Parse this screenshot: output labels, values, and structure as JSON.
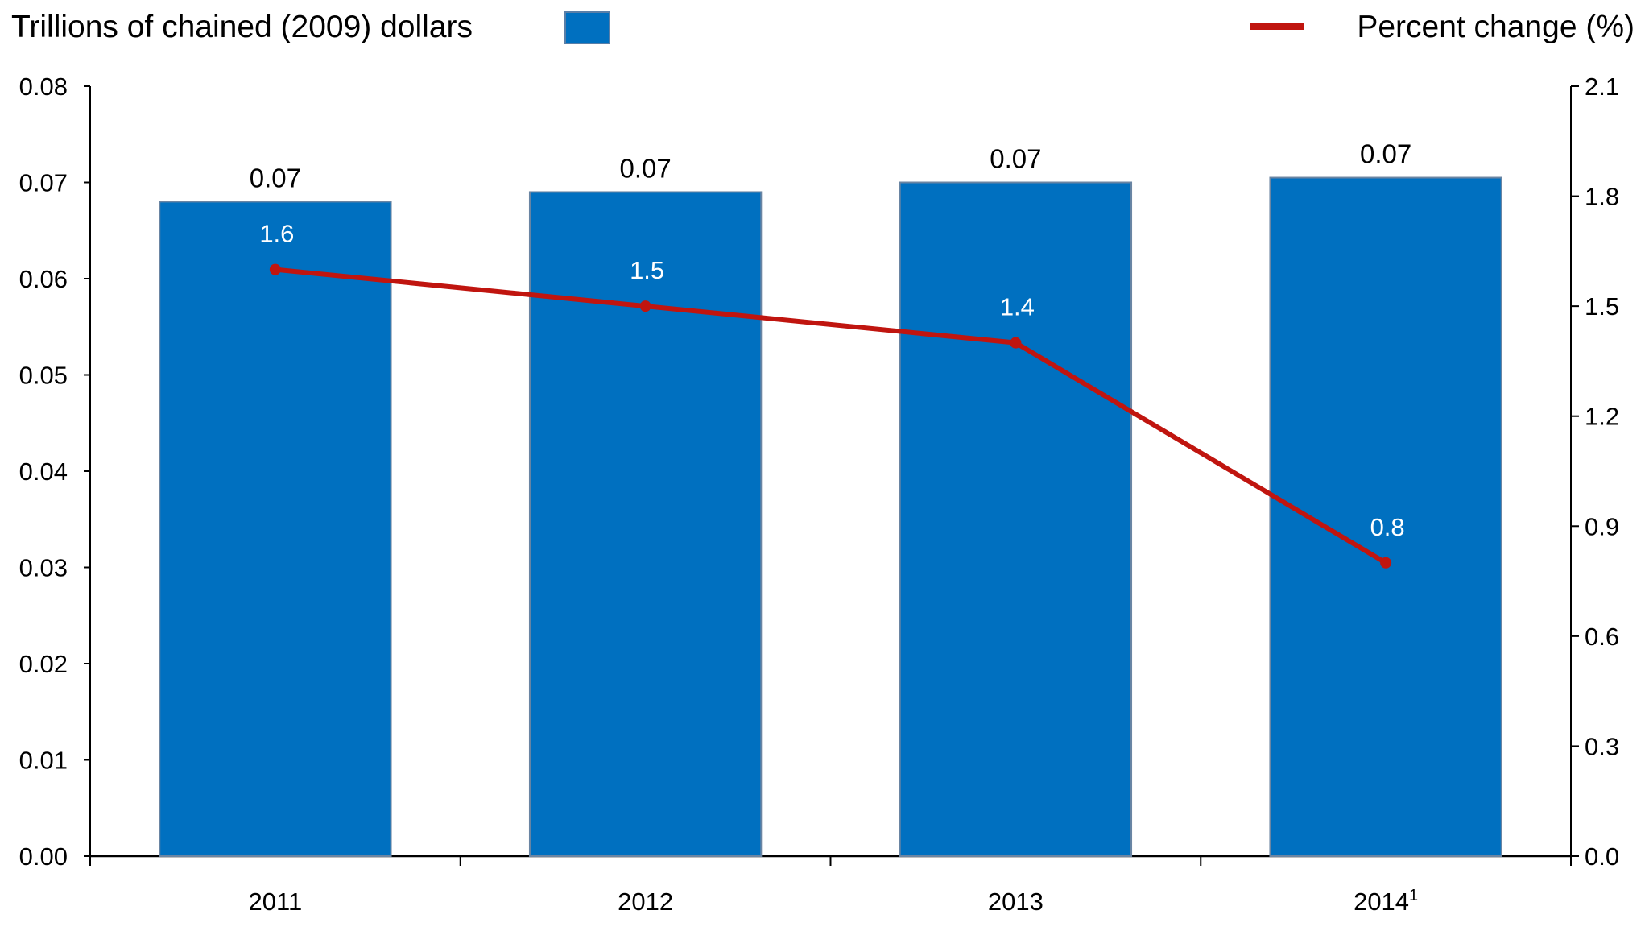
{
  "chart_data": {
    "type": "bar+line",
    "categories": [
      "2011",
      "2012",
      "2013",
      "2014"
    ],
    "category_superscripts": [
      "",
      "",
      "",
      "1"
    ],
    "series": [
      {
        "name": "Trillions of chained (2009) dollars",
        "type": "bar",
        "axis": "left",
        "values": [
          0.068,
          0.069,
          0.07,
          0.0705
        ],
        "labels": [
          "0.07",
          "0.07",
          "0.07",
          "0.07"
        ],
        "color": "#0070C0"
      },
      {
        "name": "Percent change (%)",
        "type": "line",
        "axis": "right",
        "values": [
          1.6,
          1.5,
          1.4,
          0.8
        ],
        "labels": [
          "1.6",
          "1.5",
          "1.4",
          "0.8"
        ],
        "color": "#C0150F"
      }
    ],
    "left_axis": {
      "ylim": [
        0,
        0.08
      ],
      "ticks": [
        "0.00",
        "0.01",
        "0.02",
        "0.03",
        "0.04",
        "0.05",
        "0.06",
        "0.07",
        "0.08"
      ]
    },
    "right_axis": {
      "ylim": [
        0,
        2.1
      ],
      "ticks": [
        "0.0",
        "0.3",
        "0.6",
        "0.9",
        "1.2",
        "1.5",
        "1.8",
        "2.1"
      ]
    },
    "legend": {
      "placement": "top",
      "left_label": "Trillions of chained (2009) dollars",
      "right_label": "Percent change (%)"
    },
    "grid": false
  }
}
